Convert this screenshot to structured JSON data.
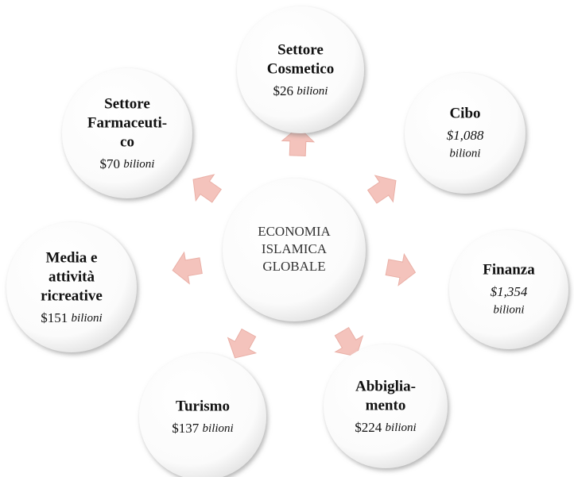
{
  "center": {
    "lines": [
      "ECONOMIA",
      "ISLAMICA",
      "GLOBALE"
    ]
  },
  "nodes": [
    {
      "label": [
        "Settore",
        "Cosmetico"
      ],
      "value": "$26",
      "unit": "bilioni"
    },
    {
      "label": [
        "Cibo"
      ],
      "value": "$1,088",
      "unit": "bilioni"
    },
    {
      "label": [
        "Finanza"
      ],
      "value": "$1,354",
      "unit": "bilioni"
    },
    {
      "label": [
        "Abbiglia-",
        "mento"
      ],
      "value": "$224",
      "unit": "bilioni"
    },
    {
      "label": [
        "Turismo"
      ],
      "value": "$137",
      "unit": "bilioni"
    },
    {
      "label": [
        "Media e",
        "attività",
        "ricreative"
      ],
      "value": "$151",
      "unit": "bilioni"
    },
    {
      "label": [
        "Settore",
        "Farmaceuti-",
        "co"
      ],
      "value": "$70",
      "unit": "bilioni"
    }
  ]
}
